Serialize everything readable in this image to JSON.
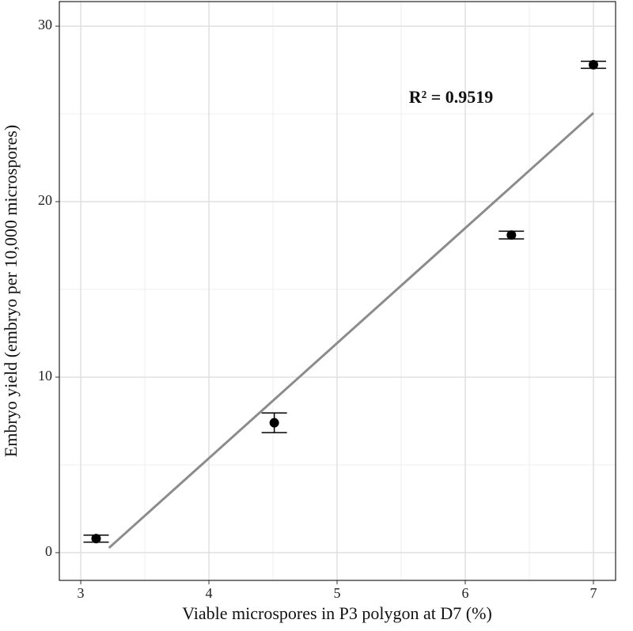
{
  "chart_data": {
    "type": "scatter",
    "x_label": "Viable microspores in P3 polygon at D7 (%)",
    "y_label": "Embryo yield (embryo per 10,000 microspores)",
    "annotation": "R² = 0.9519",
    "series": [
      {
        "color": "#000000",
        "x": [
          3.12,
          4.51,
          6.36,
          7.0
        ],
        "values": [
          0.8,
          7.4,
          18.1,
          27.8
        ],
        "errors": [
          0.2,
          0.56,
          0.22,
          0.2
        ]
      }
    ],
    "fit": {
      "color": "#8c8c8c",
      "x": [
        3.22,
        7.0
      ],
      "y": [
        0.27,
        25.05
      ]
    },
    "xlim": [
      2.833,
      7.173
    ],
    "ylim": [
      -1.58,
      31.4
    ],
    "xticks": [
      3,
      4,
      5,
      6,
      7
    ],
    "yticks": [
      0,
      10,
      20,
      30
    ],
    "grid": true
  }
}
